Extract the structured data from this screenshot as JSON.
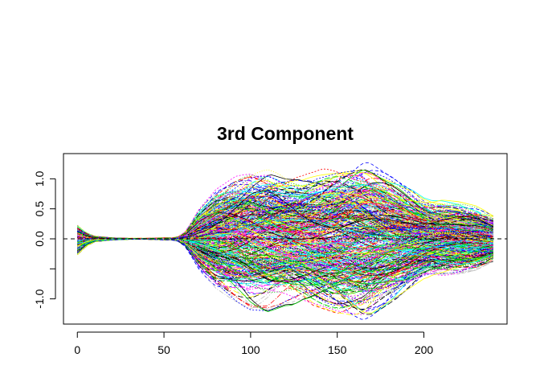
{
  "chart_data": {
    "type": "line",
    "title": "3rd Component",
    "xlabel": "",
    "ylabel": "",
    "xlim": [
      -8,
      248
    ],
    "ylim": [
      -1.42,
      1.42
    ],
    "x_ticks": [
      0,
      50,
      100,
      150,
      200
    ],
    "x_tick_labels": [
      "0",
      "50",
      "100",
      "150",
      "200"
    ],
    "y_ticks": [
      -1.0,
      -0.5,
      0.0,
      0.5,
      1.0
    ],
    "y_tick_labels": [
      "-1.0",
      "",
      "0.0",
      "0.5",
      "1.0"
    ],
    "grid": false,
    "legend": "none",
    "reference_line": {
      "y": 0,
      "style": "dashed",
      "color": "#000000"
    },
    "x_range": [
      0,
      240
    ],
    "n_curves": 420,
    "palette": [
      "#000000",
      "#ff0000",
      "#00cd00",
      "#0000ff",
      "#00ffff",
      "#ff00ff",
      "#ffff00",
      "#bebebe"
    ],
    "envelope": {
      "x": [
        0,
        5,
        10,
        20,
        30,
        40,
        50,
        55,
        58,
        62,
        66,
        70,
        80,
        90,
        100,
        110,
        120,
        130,
        140,
        150,
        160,
        165,
        170,
        180,
        190,
        200,
        205,
        210,
        220,
        230,
        240
      ],
      "upper": [
        0.25,
        0.12,
        0.05,
        0.02,
        0.01,
        0.01,
        0.02,
        0.02,
        0.04,
        0.12,
        0.3,
        0.5,
        0.85,
        1.05,
        1.2,
        1.22,
        1.12,
        1.1,
        1.2,
        1.3,
        1.35,
        1.37,
        1.3,
        1.1,
        0.9,
        0.7,
        0.65,
        0.65,
        0.62,
        0.55,
        0.4
      ],
      "lower": [
        -0.28,
        -0.13,
        -0.05,
        -0.02,
        -0.01,
        -0.01,
        -0.02,
        -0.02,
        -0.04,
        -0.12,
        -0.3,
        -0.5,
        -0.85,
        -1.05,
        -1.2,
        -1.22,
        -1.12,
        -1.1,
        -1.2,
        -1.3,
        -1.35,
        -1.37,
        -1.3,
        -1.1,
        -0.9,
        -0.7,
        -0.65,
        -0.65,
        -0.62,
        -0.55,
        -0.4
      ]
    }
  }
}
